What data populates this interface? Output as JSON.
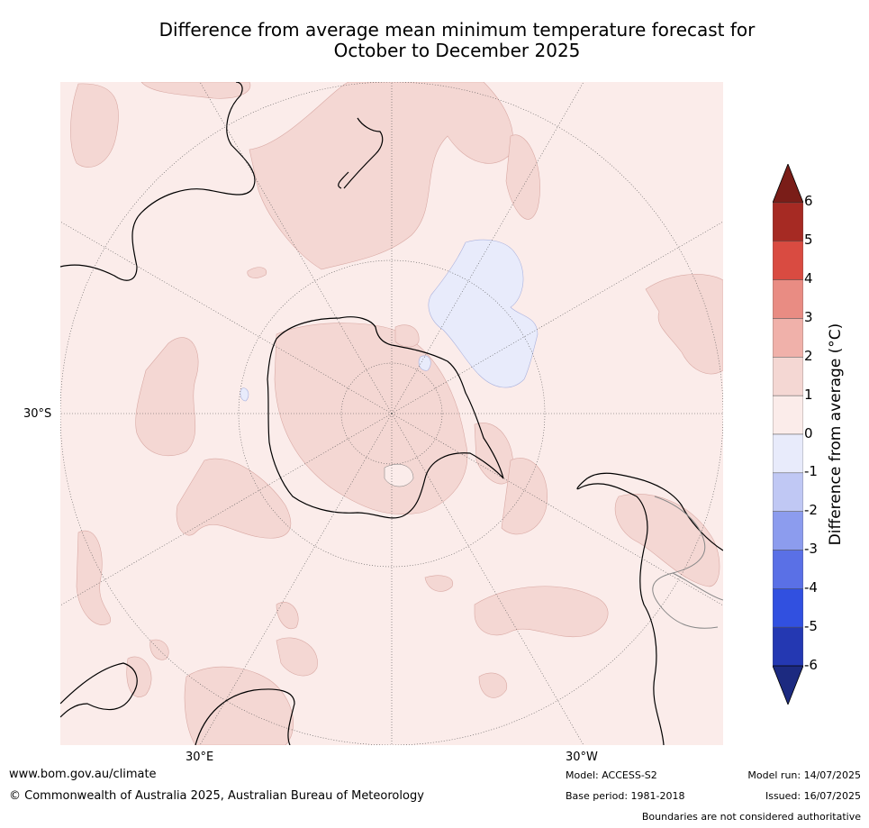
{
  "title_line1": "Difference from average mean minimum temperature forecast for",
  "title_line2": "October to December 2025",
  "map": {
    "lat_label": "30°S",
    "lon_labels": {
      "east": "30°E",
      "west": "30°W"
    },
    "colors": {
      "ocean_fill": "#fbecea",
      "warm_patch": "#f4d7d3",
      "cool_patch": "#e8ebfb",
      "graticule": "#555555",
      "coast": "#000000"
    }
  },
  "colorbar": {
    "label": "Difference from average (°C)",
    "ticks": [
      "6",
      "5",
      "4",
      "3",
      "2",
      "1",
      "0",
      "-1",
      "-2",
      "-3",
      "-4",
      "-5",
      "-6"
    ],
    "bins": [
      {
        "range": "5 to 6",
        "color": "#a62a23"
      },
      {
        "range": "4 to 5",
        "color": "#d94b41"
      },
      {
        "range": "3 to 4",
        "color": "#e98c83"
      },
      {
        "range": "2 to 3",
        "color": "#f0b1aa"
      },
      {
        "range": "1 to 2",
        "color": "#f4d7d3"
      },
      {
        "range": "0 to 1",
        "color": "#fbecea"
      },
      {
        "range": "-1 to 0",
        "color": "#e8ebfb"
      },
      {
        "range": "-2 to -1",
        "color": "#c0c8f4"
      },
      {
        "range": "-3 to -2",
        "color": "#8c9cee"
      },
      {
        "range": "-4 to -3",
        "color": "#5a70e6"
      },
      {
        "range": "-5 to -4",
        "color": "#3150e0"
      },
      {
        "range": "-6 to -5",
        "color": "#2438b2"
      }
    ],
    "over_color": "#7a1d18",
    "under_color": "#1c2a80"
  },
  "footer": {
    "url": "www.bom.gov.au/climate",
    "copyright": "© Commonwealth of Australia 2025, Australian Bureau of Meteorology",
    "model": "Model: ACCESS-S2",
    "base_period": "Base period: 1981-2018",
    "model_run": "Model run: 14/07/2025",
    "issued": "Issued: 16/07/2025",
    "disclaimer": "Boundaries are not considered authoritative"
  }
}
